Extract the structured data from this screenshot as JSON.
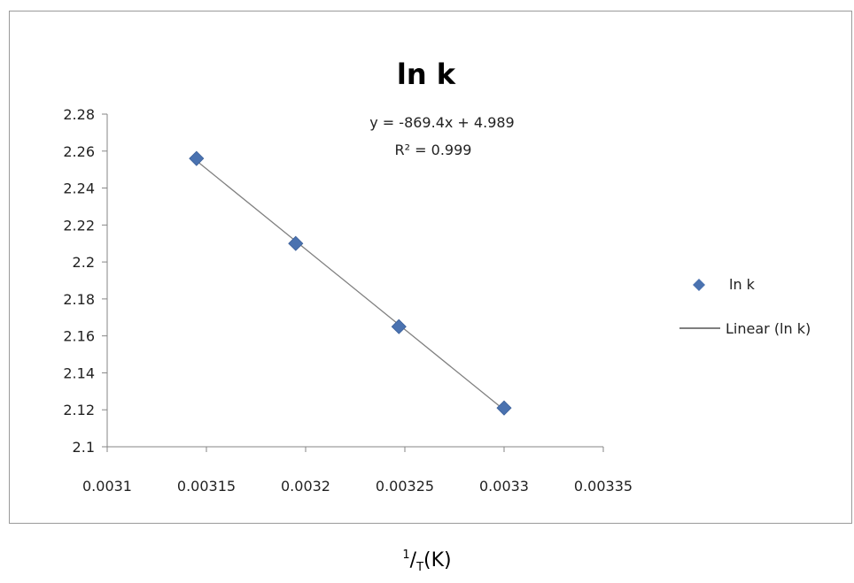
{
  "chart_data": {
    "type": "scatter",
    "title": "ln k",
    "xlabel": {
      "numerator": "1",
      "slash": "/",
      "denominator": "T",
      "unit": "(K)"
    },
    "ylabel": "",
    "xlim": [
      0.0031,
      0.00335
    ],
    "ylim": [
      2.1,
      2.28
    ],
    "x_ticks": [
      "0.0031",
      "0.00315",
      "0.0032",
      "0.00325",
      "0.0033",
      "0.00335"
    ],
    "y_ticks": [
      "2.1",
      "2.12",
      "2.14",
      "2.16",
      "2.18",
      "2.2",
      "2.22",
      "2.24",
      "2.26",
      "2.28"
    ],
    "grid": false,
    "legend_position": "right",
    "series": [
      {
        "name": "ln k",
        "marker": "diamond",
        "color": "#4a72b0",
        "points": [
          {
            "x": 0.003145,
            "y": 2.256
          },
          {
            "x": 0.003195,
            "y": 2.21
          },
          {
            "x": 0.003247,
            "y": 2.165
          },
          {
            "x": 0.0033,
            "y": 2.121
          }
        ]
      }
    ],
    "trendline": {
      "name": "Linear (ln k)",
      "type": "linear",
      "slope": -869.4,
      "intercept": 4.989,
      "color": "#808080",
      "equation": "y = -869.4x + 4.989",
      "r_squared": "R² = 0.999"
    }
  }
}
